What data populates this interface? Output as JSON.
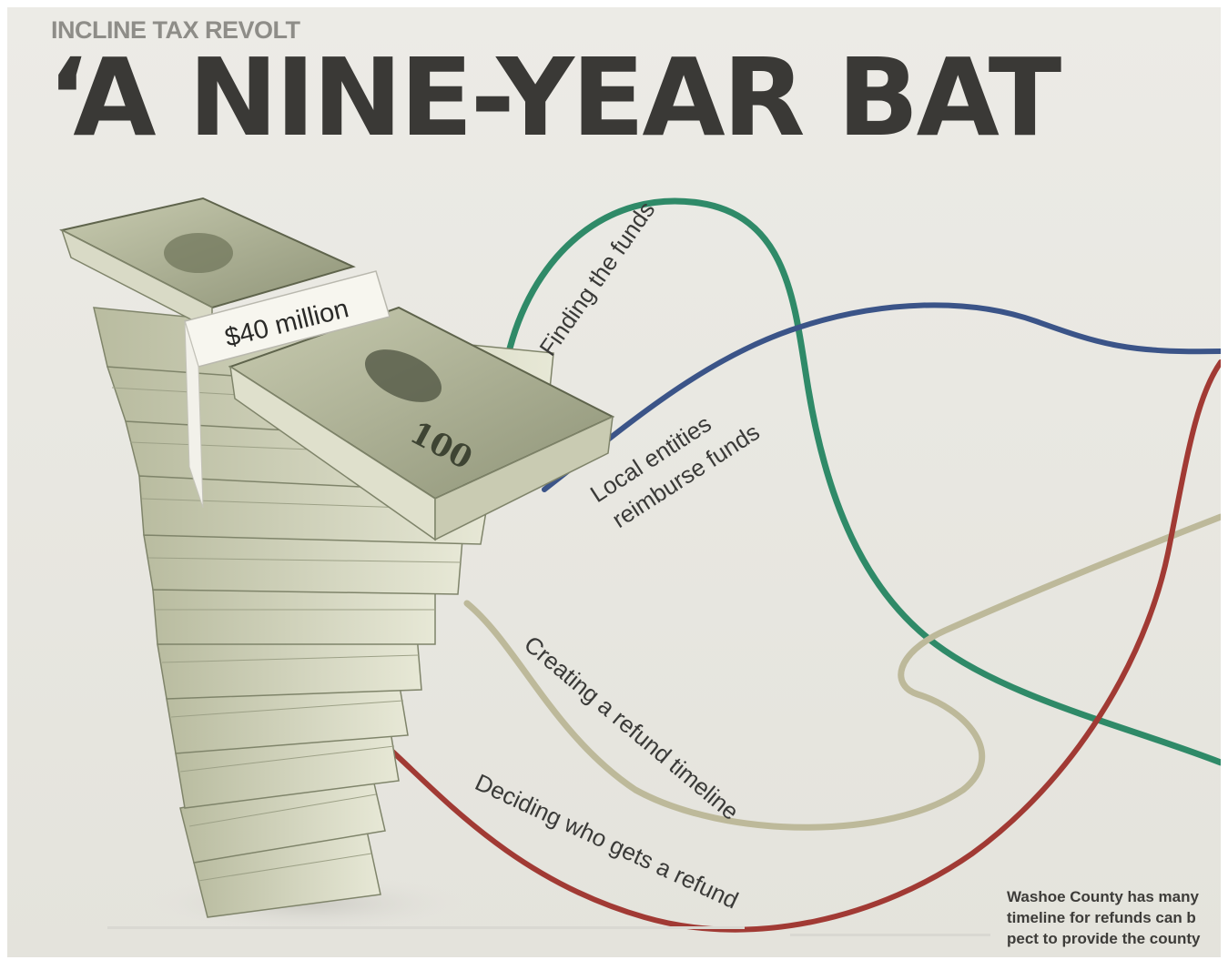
{
  "kicker": "INCLINE TAX REVOLT",
  "headline": "‘A NINE-YEAR BAT",
  "money_band_label": "$40 million",
  "timeline_lines": [
    {
      "label": "Finding the funds",
      "color": "#2f8a68"
    },
    {
      "label_line1": "Local entities",
      "label_line2": "reimburse funds",
      "color": "#3b5488"
    },
    {
      "label": "Creating a refund timeline",
      "color": "#bdb99a"
    },
    {
      "label": "Deciding who gets a refund",
      "color": "#a13a34"
    }
  ],
  "caption_lines": [
    "Washoe County has many",
    "timeline for refunds can b",
    "pect to provide the county"
  ]
}
